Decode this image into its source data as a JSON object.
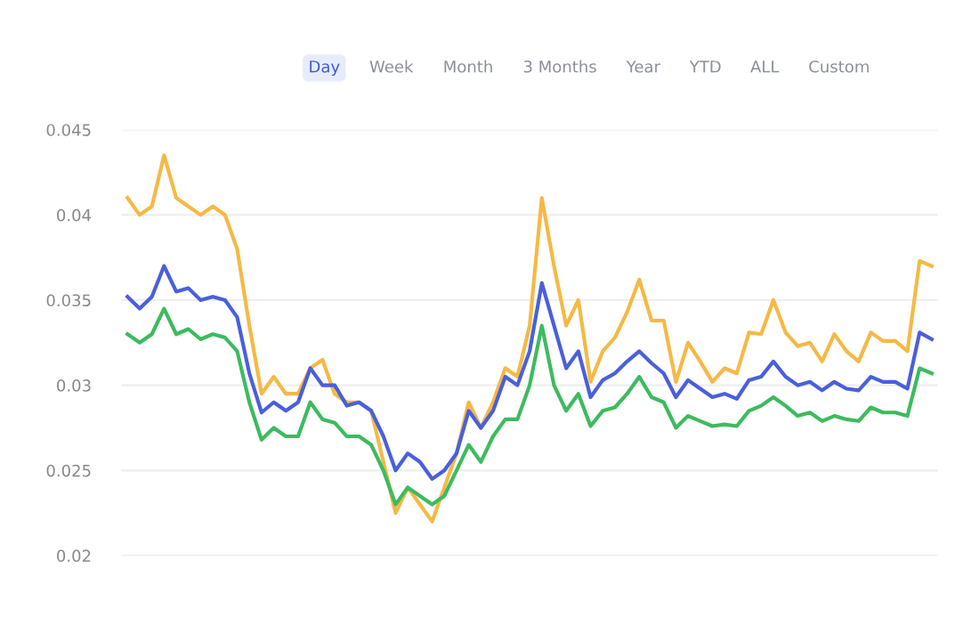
{
  "chart_data": {
    "type": "line",
    "annotations": [
      "Day",
      "Week",
      "Month",
      "3 Months",
      "Year",
      "YTD",
      "ALL",
      "Custom"
    ],
    "categories": [
      null,
      null,
      null,
      null,
      null,
      null,
      null,
      null,
      null,
      null,
      null,
      null,
      null,
      null,
      null,
      null,
      null,
      null,
      null,
      null,
      null,
      null,
      null,
      null,
      null,
      null,
      null,
      null,
      null,
      null,
      null,
      null,
      null,
      null,
      null,
      null,
      null,
      null,
      null,
      null,
      null,
      null,
      null,
      null,
      null,
      null,
      null,
      null,
      null,
      null,
      null,
      null,
      null,
      null,
      null,
      null,
      null,
      null,
      null,
      null,
      null,
      null,
      null,
      null,
      null,
      null,
      null
    ],
    "series": [
      {
        "color": "#f5b945",
        "values": [
          0.041,
          0.04,
          0.0405,
          0.0435,
          0.041,
          0.0405,
          0.04,
          0.0405,
          0.04,
          0.038,
          0.0335,
          0.0295,
          0.0305,
          0.0295,
          0.0295,
          0.031,
          0.0315,
          0.0295,
          0.029,
          0.029,
          0.0285,
          0.0255,
          0.0225,
          0.024,
          0.023,
          0.022,
          0.024,
          0.026,
          0.029,
          0.0275,
          0.029,
          0.031,
          0.0305,
          0.0335,
          0.041,
          0.037,
          0.0335,
          0.035,
          0.0302,
          0.032,
          0.0328,
          0.0343,
          0.0362,
          0.0338,
          0.0338,
          0.0302,
          0.0325,
          0.0314,
          0.0302,
          0.031,
          0.0307,
          0.0331,
          0.033,
          0.035,
          0.0331,
          0.0323,
          0.0325,
          0.0314,
          0.033,
          0.032,
          0.0314,
          0.0331,
          0.0326,
          0.0326,
          0.032,
          0.0373,
          0.037
        ]
      },
      {
        "color": "#4a5fdc",
        "values": [
          0.0352,
          0.0345,
          0.0352,
          0.037,
          0.0355,
          0.0357,
          0.035,
          0.0352,
          0.035,
          0.034,
          0.0307,
          0.0284,
          0.029,
          0.0285,
          0.029,
          0.031,
          0.03,
          0.03,
          0.0288,
          0.029,
          0.0285,
          0.027,
          0.025,
          0.026,
          0.0255,
          0.0245,
          0.025,
          0.026,
          0.0285,
          0.0275,
          0.0285,
          0.0305,
          0.03,
          0.032,
          0.036,
          0.0335,
          0.031,
          0.032,
          0.0293,
          0.0303,
          0.0307,
          0.0314,
          0.032,
          0.0313,
          0.0307,
          0.0293,
          0.0303,
          0.0298,
          0.0293,
          0.0295,
          0.0292,
          0.0303,
          0.0305,
          0.0314,
          0.0305,
          0.03,
          0.0302,
          0.0297,
          0.0302,
          0.0298,
          0.0297,
          0.0305,
          0.0302,
          0.0302,
          0.0298,
          0.0331,
          0.0327
        ]
      },
      {
        "color": "#3dbb5e",
        "values": [
          0.033,
          0.0325,
          0.033,
          0.0345,
          0.033,
          0.0333,
          0.0327,
          0.033,
          0.0328,
          0.032,
          0.029,
          0.0268,
          0.0275,
          0.027,
          0.027,
          0.029,
          0.028,
          0.0278,
          0.027,
          0.027,
          0.0265,
          0.025,
          0.023,
          0.024,
          0.0235,
          0.023,
          0.0235,
          0.025,
          0.0265,
          0.0255,
          0.027,
          0.028,
          0.028,
          0.03,
          0.0335,
          0.03,
          0.0285,
          0.0295,
          0.0276,
          0.0285,
          0.0287,
          0.0295,
          0.0305,
          0.0293,
          0.029,
          0.0275,
          0.0282,
          0.0279,
          0.0276,
          0.0277,
          0.0276,
          0.0285,
          0.0288,
          0.0293,
          0.0288,
          0.0282,
          0.0284,
          0.0279,
          0.0282,
          0.028,
          0.0279,
          0.0287,
          0.0284,
          0.0284,
          0.0282,
          0.031,
          0.0307
        ]
      }
    ],
    "ylim": [
      0.02,
      0.045
    ],
    "yticks": [
      0.02,
      0.025,
      0.03,
      0.035,
      0.04,
      0.045
    ],
    "grid": "y",
    "tick_labels": "y"
  }
}
